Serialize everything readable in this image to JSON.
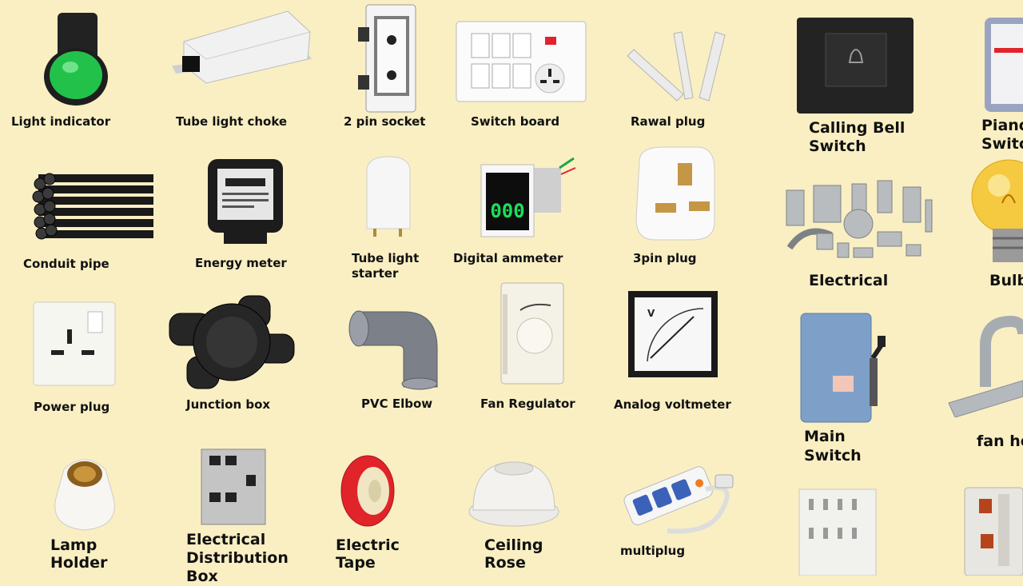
{
  "items": {
    "light_indicator": "Light indicator",
    "tube_light_choke": "Tube light choke",
    "two_pin_socket": "2 pin socket",
    "switch_board": "Switch board",
    "rawal_plug": "Rawal plug",
    "calling_bell_1": "Calling Bell",
    "calling_bell_2": "Switch",
    "piano_1": "Piano",
    "piano_2": "Switc",
    "conduit_pipe": "Conduit pipe",
    "energy_meter": "Energy meter",
    "tube_starter_1": "Tube light",
    "tube_starter_2": "starter",
    "digital_ammeter": "Digital ammeter",
    "three_pin_plug": "3pin plug",
    "electrical": "Electrical",
    "bulb": "Bulb",
    "power_plug": "Power plug",
    "junction_box": "Junction box",
    "pvc_elbow": "PVC Elbow",
    "fan_regulator": "Fan Regulator",
    "analog_voltmeter": "Analog voltmeter",
    "main_switch_1": "Main",
    "main_switch_2": "Switch",
    "fan_hook": "fan ho",
    "lamp_holder_1": "Lamp",
    "lamp_holder_2": "Holder",
    "distribution_1": "Electrical",
    "distribution_2": "Distribution",
    "distribution_3": "Box",
    "electric_tape_1": "Electric",
    "electric_tape_2": "Tape",
    "ceiling_rose_1": "Ceiling",
    "ceiling_rose_2": "Rose",
    "multiplug": "multiplug"
  },
  "display": {
    "ammeter_reading": "000",
    "meter_reading": "00000"
  },
  "colors": {
    "background": "#f9efc3",
    "indicator_green": "#22c24a",
    "tape_red": "#e0242a",
    "ammeter_digits": "#19e05a",
    "main_switch_blue": "#7ea0c8"
  }
}
